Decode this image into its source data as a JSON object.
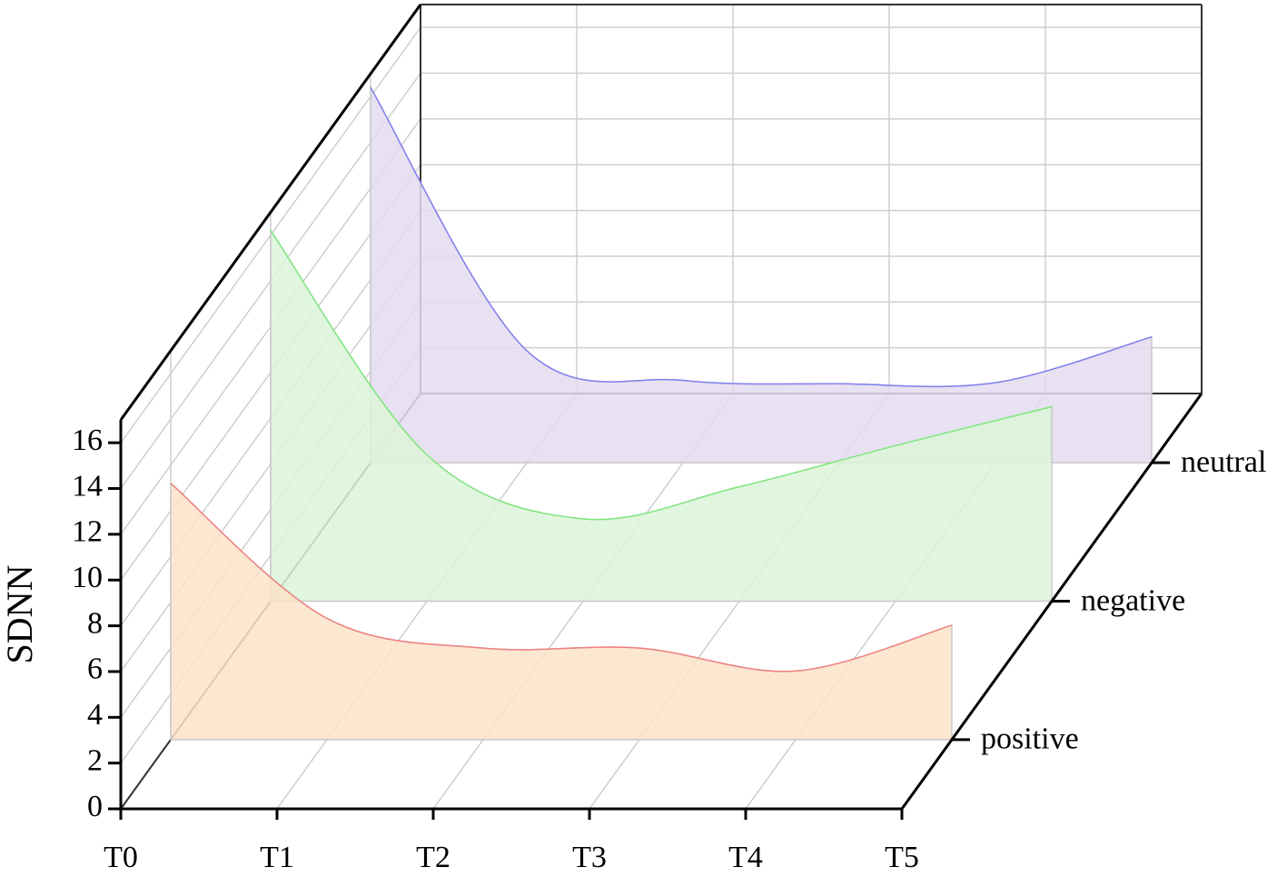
{
  "chart_data": {
    "type": "waterfall",
    "y_label": "SDNN",
    "categories": [
      "T0",
      "T1",
      "T2",
      "T3",
      "T4",
      "T5"
    ],
    "series": [
      {
        "name": "positive",
        "color": "#f08080",
        "fill": "#fbe3c8",
        "values": [
          11.2,
          5.3,
          4.0,
          4.0,
          3.0,
          5.0
        ]
      },
      {
        "name": "negative",
        "color": "#80e880",
        "fill": "#dcf4d8",
        "values": [
          16.2,
          6.4,
          3.6,
          5.0,
          6.8,
          8.5
        ]
      },
      {
        "name": "neutral",
        "color": "#8080f0",
        "fill": "#e4dcf0",
        "values": [
          16.4,
          4.9,
          3.6,
          3.45,
          3.5,
          5.5
        ]
      }
    ],
    "ylim": [
      0,
      17
    ],
    "yticks": [
      0,
      2,
      4,
      6,
      8,
      10,
      12,
      14,
      16
    ],
    "grid": true
  }
}
